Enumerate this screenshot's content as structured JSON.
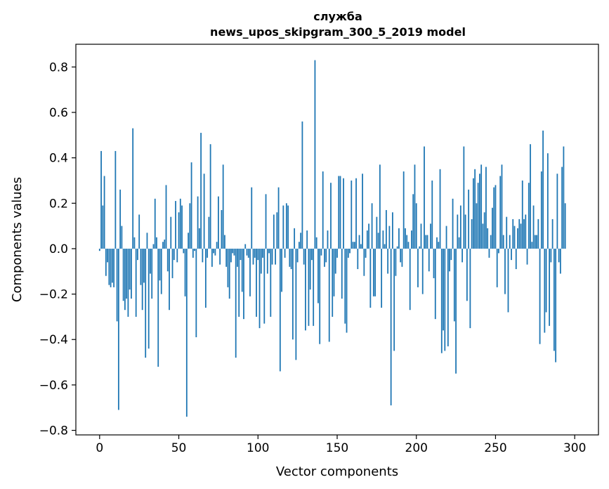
{
  "chart_data": {
    "type": "bar",
    "title": "служба",
    "subtitle": "news_upos_skipgram_300_5_2019 model",
    "xlabel": "Vector components",
    "ylabel": "Components values",
    "xlim": [
      -15,
      315
    ],
    "ylim": [
      -0.82,
      0.9
    ],
    "xticks": [
      0,
      50,
      100,
      150,
      200,
      250,
      300
    ],
    "xtick_labels": [
      "0",
      "50",
      "100",
      "150",
      "200",
      "250",
      "300"
    ],
    "yticks": [
      -0.8,
      -0.6,
      -0.4,
      -0.2,
      0.0,
      0.2,
      0.4,
      0.6,
      0.8
    ],
    "ytick_labels": [
      "−0.8",
      "−0.6",
      "−0.4",
      "−0.2",
      "0.0",
      "0.2",
      "0.4",
      "0.6",
      "0.8"
    ],
    "bar_color": "#1f77b4",
    "grid": false,
    "values": [
      -0.01,
      0.43,
      0.19,
      0.32,
      -0.12,
      -0.06,
      -0.16,
      -0.17,
      -0.15,
      -0.17,
      0.43,
      -0.32,
      -0.71,
      0.26,
      0.1,
      -0.23,
      -0.27,
      -0.22,
      -0.3,
      -0.18,
      -0.22,
      0.53,
      0.05,
      -0.3,
      -0.05,
      0.15,
      -0.16,
      -0.27,
      -0.15,
      -0.48,
      0.07,
      -0.44,
      -0.11,
      -0.22,
      0.02,
      0.22,
      0.05,
      -0.52,
      -0.14,
      -0.2,
      0.03,
      0.04,
      0.28,
      -0.1,
      -0.27,
      0.14,
      -0.13,
      -0.05,
      0.21,
      -0.06,
      0.16,
      0.22,
      0.19,
      -0.02,
      -0.21,
      -0.74,
      0.07,
      0.2,
      0.38,
      -0.04,
      -0.01,
      -0.39,
      0.23,
      0.09,
      0.51,
      -0.06,
      0.33,
      -0.26,
      -0.04,
      0.14,
      0.46,
      -0.08,
      -0.02,
      -0.03,
      0.03,
      0.23,
      -0.07,
      0.17,
      0.37,
      0.06,
      -0.08,
      -0.17,
      -0.22,
      -0.06,
      -0.02,
      -0.03,
      -0.48,
      -0.08,
      -0.3,
      -0.05,
      -0.19,
      -0.31,
      0.02,
      -0.03,
      -0.04,
      -0.21,
      0.27,
      -0.07,
      -0.04,
      -0.3,
      -0.05,
      -0.35,
      -0.11,
      -0.04,
      -0.33,
      0.24,
      -0.11,
      -0.02,
      -0.3,
      -0.07,
      0.15,
      -0.07,
      0.16,
      0.27,
      -0.54,
      -0.19,
      0.19,
      -0.04,
      0.2,
      0.19,
      -0.08,
      -0.09,
      -0.4,
      0.09,
      -0.49,
      -0.06,
      0.03,
      0.07,
      0.56,
      -0.07,
      -0.36,
      0.08,
      -0.34,
      -0.18,
      -0.05,
      -0.34,
      0.83,
      0.05,
      -0.24,
      -0.42,
      -0.03,
      0.34,
      -0.08,
      -0.06,
      0.08,
      -0.41,
      0.29,
      -0.3,
      -0.21,
      -0.11,
      -0.04,
      0.32,
      0.32,
      -0.22,
      0.31,
      -0.33,
      -0.37,
      -0.04,
      -0.02,
      0.3,
      0.03,
      0.03,
      0.31,
      -0.09,
      0.06,
      0.02,
      0.33,
      -0.12,
      -0.04,
      0.08,
      0.11,
      -0.26,
      0.2,
      -0.21,
      -0.21,
      0.14,
      0.07,
      0.37,
      -0.26,
      0.08,
      0.02,
      0.17,
      -0.11,
      0.1,
      -0.69,
      0.16,
      -0.45,
      -0.12,
      0.01,
      0.09,
      -0.06,
      -0.08,
      0.34,
      0.09,
      0.06,
      0.03,
      -0.27,
      0.08,
      0.24,
      0.37,
      0.2,
      -0.17,
      0.01,
      0.11,
      -0.2,
      0.45,
      0.06,
      0.06,
      -0.1,
      0.11,
      0.3,
      -0.13,
      -0.31,
      0.05,
      0.03,
      0.35,
      -0.46,
      -0.36,
      -0.45,
      0.1,
      -0.43,
      -0.1,
      -0.05,
      0.22,
      -0.32,
      -0.55,
      0.15,
      0.05,
      0.19,
      -0.06,
      0.45,
      0.15,
      -0.23,
      0.26,
      -0.35,
      0.13,
      0.31,
      0.35,
      0.2,
      0.29,
      0.33,
      0.37,
      0.11,
      0.16,
      0.36,
      0.09,
      -0.04,
      0.06,
      0.18,
      0.27,
      0.28,
      -0.17,
      -0.02,
      0.32,
      0.37,
      0.06,
      -0.2,
      0.14,
      -0.28,
      0.06,
      -0.05,
      0.13,
      0.1,
      -0.09,
      0.09,
      0.13,
      0.11,
      0.3,
      0.13,
      0.15,
      -0.07,
      0.29,
      0.46,
      0.03,
      0.19,
      0.06,
      0.06,
      0.13,
      -0.42,
      0.34,
      0.52,
      -0.37,
      -0.28,
      0.42,
      -0.34,
      -0.06,
      0.13,
      -0.45,
      -0.5,
      0.33,
      -0.06,
      -0.11,
      0.36,
      0.45,
      0.2
    ]
  }
}
